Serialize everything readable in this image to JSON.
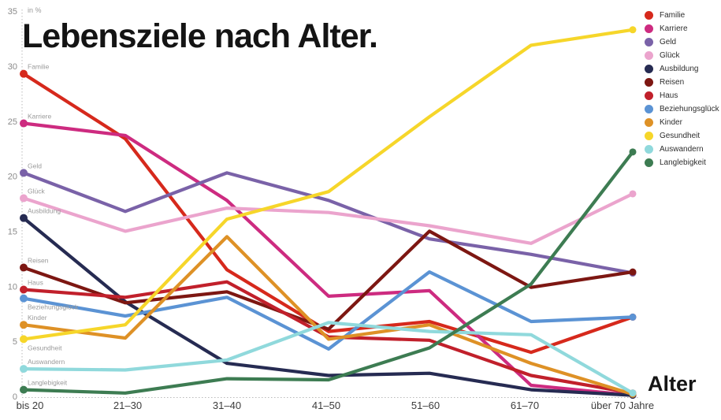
{
  "title": "Lebensziele nach Alter.",
  "unit_label": "in %",
  "x_axis_label": "Alter",
  "chart_data": {
    "type": "line",
    "categories": [
      "bis 20",
      "21–30",
      "31–40",
      "41–50",
      "51–60",
      "61–70",
      "über 70 Jahre"
    ],
    "yticks": [
      0,
      5,
      10,
      15,
      20,
      25,
      30,
      35
    ],
    "ylim": [
      0,
      35
    ],
    "grid": false,
    "legend_position": "right",
    "series": [
      {
        "name": "Familie",
        "color": "#d6291c",
        "label_position": "above",
        "values": [
          29.3,
          23.4,
          11.5,
          5.9,
          6.8,
          4.0,
          7.2
        ]
      },
      {
        "name": "Karriere",
        "color": "#cd2b80",
        "label_position": "above",
        "values": [
          24.8,
          23.7,
          17.8,
          9.1,
          9.6,
          1.0,
          0.1
        ]
      },
      {
        "name": "Geld",
        "color": "#7a62a8",
        "label_position": "above",
        "values": [
          20.3,
          16.8,
          20.3,
          17.8,
          14.3,
          12.9,
          11.2
        ]
      },
      {
        "name": "Glück",
        "color": "#eba4cd",
        "label_position": "above",
        "values": [
          18.0,
          15.0,
          17.1,
          16.7,
          15.5,
          13.9,
          18.4
        ]
      },
      {
        "name": "Ausbildung",
        "color": "#262b52",
        "label_position": "above",
        "values": [
          16.2,
          8.6,
          3.0,
          1.9,
          2.1,
          0.6,
          0.1
        ]
      },
      {
        "name": "Reisen",
        "color": "#7d1712",
        "label_position": "above",
        "values": [
          11.7,
          8.5,
          9.5,
          6.1,
          15.0,
          9.9,
          11.3
        ]
      },
      {
        "name": "Haus",
        "color": "#c1202b",
        "label_position": "above",
        "values": [
          9.7,
          9.0,
          10.4,
          5.4,
          5.1,
          1.9,
          0.3
        ]
      },
      {
        "name": "Beziehungsglück",
        "color": "#5b93d4",
        "label_position": "below",
        "values": [
          8.9,
          7.3,
          9.0,
          4.3,
          11.3,
          6.8,
          7.2
        ]
      },
      {
        "name": "Kinder",
        "color": "#de9126",
        "label_position": "above",
        "values": [
          6.5,
          5.3,
          14.5,
          5.2,
          6.5,
          3.0,
          0.2
        ]
      },
      {
        "name": "Gesundheit",
        "color": "#f6d62a",
        "label_position": "below",
        "values": [
          5.2,
          6.5,
          16.1,
          18.6,
          25.4,
          31.9,
          33.3
        ]
      },
      {
        "name": "Auswandern",
        "color": "#90d9dc",
        "label_position": "above",
        "values": [
          2.5,
          2.4,
          3.3,
          6.7,
          5.9,
          5.6,
          0.3
        ]
      },
      {
        "name": "Langlebigkeit",
        "color": "#3d7c52",
        "label_position": "above",
        "values": [
          0.6,
          0.3,
          1.6,
          1.5,
          4.4,
          10.2,
          22.2
        ]
      }
    ]
  }
}
